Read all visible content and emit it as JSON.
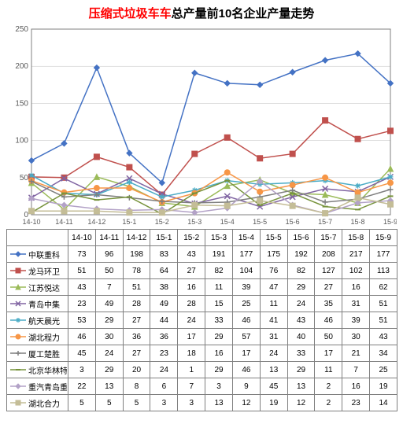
{
  "title_red": "压缩式垃圾车车",
  "title_black": "总产量前10名企业产量走势",
  "chart": {
    "type": "line",
    "xlabels": [
      "14-10",
      "14-11",
      "14-12",
      "15-1",
      "15-2",
      "15-3",
      "15-4",
      "15-5",
      "15-6",
      "15-7",
      "15-8",
      "15-9"
    ],
    "ylim": [
      0,
      250
    ],
    "ytick_step": 50,
    "yticks": [
      0,
      50,
      100,
      150,
      200,
      250
    ],
    "plot_bg": "#ffffff",
    "grid_color": "#bfbfbf",
    "axis_color": "#808080",
    "label_color": "#595959",
    "xtick_fontsize": 9,
    "ytick_fontsize": 10,
    "line_width": 1.5,
    "marker_size": 3.5,
    "series": [
      {
        "name": "中联重科",
        "color": "#4472c4",
        "marker": "diamond",
        "values": [
          73,
          96,
          198,
          83,
          43,
          191,
          177,
          175,
          192,
          208,
          217,
          177
        ]
      },
      {
        "name": "龙马环卫",
        "color": "#c0504d",
        "marker": "square",
        "values": [
          51,
          50,
          78,
          64,
          27,
          82,
          104,
          76,
          82,
          127,
          102,
          113
        ]
      },
      {
        "name": "江苏悦达",
        "color": "#9bbb59",
        "marker": "triangle",
        "values": [
          43,
          7,
          51,
          38,
          16,
          11,
          39,
          47,
          29,
          27,
          16,
          62
        ]
      },
      {
        "name": "青岛中集",
        "color": "#8064a2",
        "marker": "x",
        "values": [
          23,
          49,
          28,
          49,
          28,
          15,
          25,
          11,
          24,
          35,
          31,
          51
        ]
      },
      {
        "name": "航天晨光",
        "color": "#4bacc6",
        "marker": "asterisk",
        "values": [
          53,
          29,
          27,
          44,
          24,
          33,
          46,
          41,
          43,
          46,
          39,
          51
        ]
      },
      {
        "name": "湖北程力",
        "color": "#f79646",
        "marker": "circle",
        "values": [
          46,
          30,
          36,
          36,
          17,
          29,
          57,
          31,
          40,
          50,
          30,
          43
        ]
      },
      {
        "name": "厦工楚胜",
        "color": "#7f7f7f",
        "marker": "plus",
        "values": [
          45,
          24,
          27,
          23,
          18,
          16,
          17,
          24,
          33,
          17,
          21,
          34
        ]
      },
      {
        "name": "北京华林特",
        "color": "#77933c",
        "marker": "dash",
        "values": [
          3,
          29,
          20,
          24,
          1,
          29,
          46,
          13,
          29,
          11,
          7,
          25
        ]
      },
      {
        "name": "重汽青岛重工",
        "color": "#b3a2c7",
        "marker": "diamond",
        "values": [
          22,
          13,
          8,
          6,
          7,
          3,
          9,
          45,
          13,
          2,
          16,
          19
        ]
      },
      {
        "name": "湖北合力",
        "color": "#c4bd97",
        "marker": "square",
        "values": [
          5,
          5,
          5,
          3,
          3,
          13,
          12,
          19,
          12,
          2,
          23,
          14
        ]
      }
    ]
  }
}
